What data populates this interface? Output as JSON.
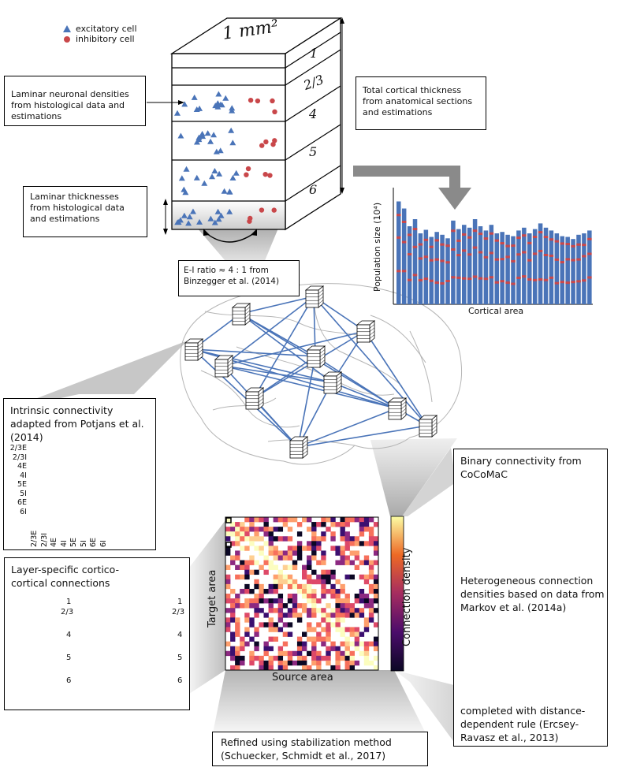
{
  "legend": {
    "excitatory": "excitatory cell",
    "inhibitory": "inhibitory cell",
    "colors": {
      "excitatory": "#4a74b8",
      "inhibitory": "#c9474a"
    }
  },
  "column": {
    "area_label": "1 mm²",
    "layers": [
      "1",
      "2/3",
      "4",
      "5",
      "6"
    ]
  },
  "annotations": {
    "densities": "Laminar neuronal densities from histological data and estimations",
    "thickness_total": "Total cortical thickness from anatomical sections and estimations",
    "laminar_thickness": "Laminar thicknesses from histological data and estimations",
    "ei_ratio": "E-I ratio ≈ 4 : 1 from Binzegger et al. (2014)",
    "intrinsic": "Intrinsic connectivity adapted from Potjans et al. (2014)",
    "layer_specific": "Layer-specific cortico-cortical connections",
    "binary": "Binary connectivity from CoCoMaC",
    "heterogeneous": "Heterogeneous connection densities based on data from Markov et al. (2014a)",
    "completed": "completed with distance-dependent rule (Ercsey-Ravasz et al., 2013)",
    "refined": "Refined using stabilization method (Schuecker, Schmidt et al., 2017)"
  },
  "population_chart": {
    "ylabel": "Population size (10⁴)",
    "xlabel": "Cortical area"
  },
  "intrinsic_matrix": {
    "labels": [
      "2/3E",
      "2/3I",
      "4E",
      "4I",
      "5E",
      "5I",
      "6E",
      "6I"
    ]
  },
  "main_matrix": {
    "xlabel": "Source area",
    "ylabel": "Target area",
    "colorbar_label": "Connection density"
  },
  "layer_diagram": {
    "layers_left": [
      "1",
      "2/3",
      "4",
      "5",
      "6"
    ],
    "layers_right": [
      "1",
      "2/3",
      "4",
      "5",
      "6"
    ]
  }
}
